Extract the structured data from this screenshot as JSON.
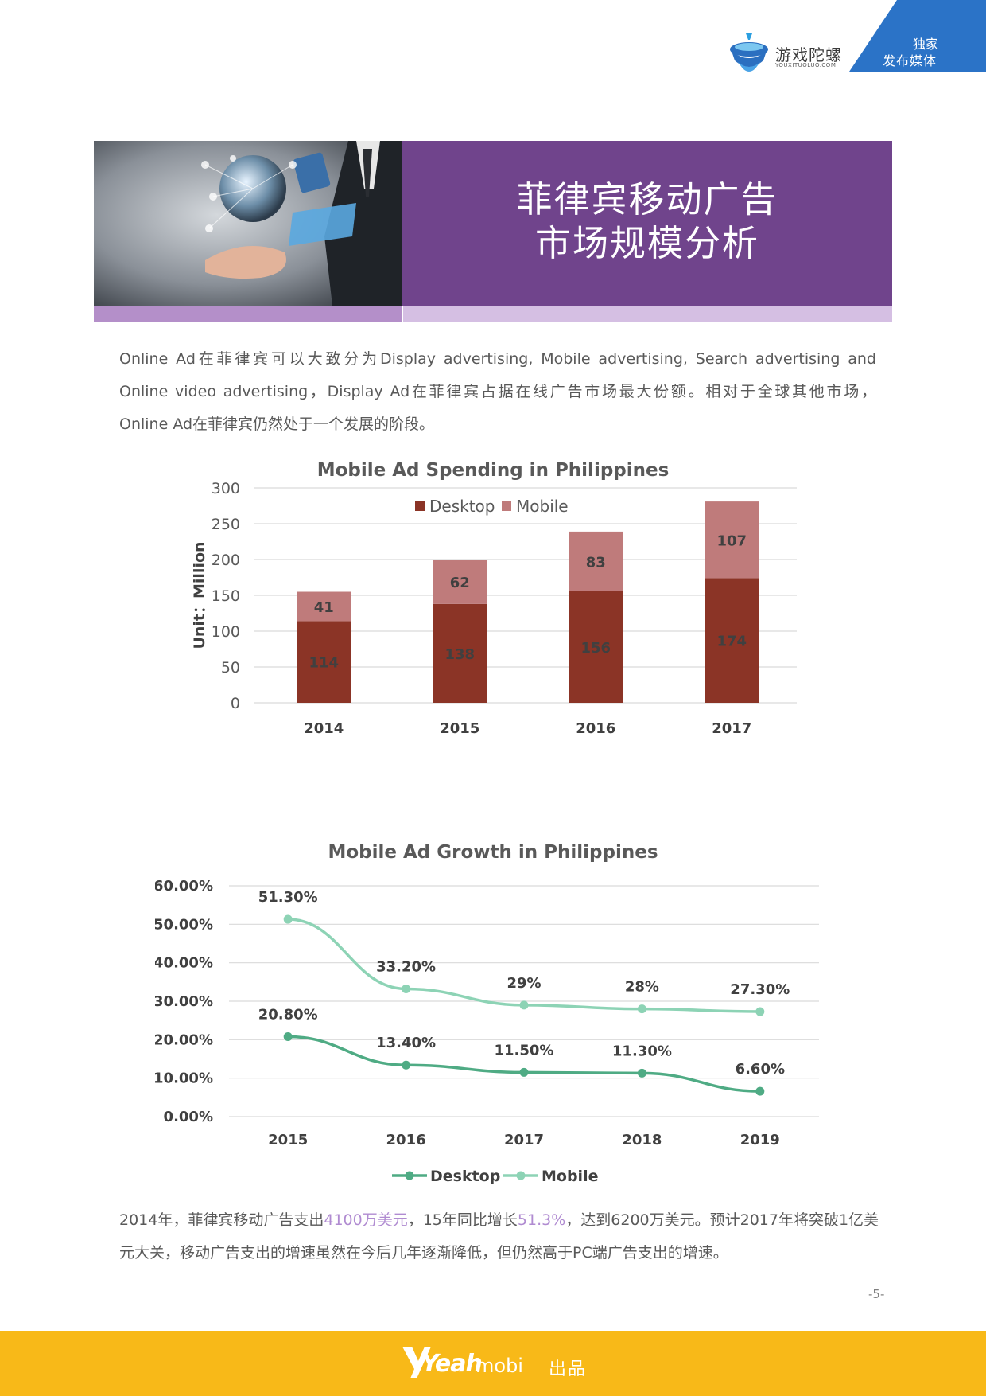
{
  "header": {
    "logo_name": "游戏陀螺",
    "logo_sub": "YOUXITUOLUO.COM",
    "corner_line1": "独家",
    "corner_line2": "发布媒体",
    "colors": {
      "corner": "#2b73c7",
      "logo_blue": "#2b6fc0"
    }
  },
  "banner": {
    "title_line1": "菲律宾移动广告",
    "title_line2": "市场规模分析",
    "image": "businessman-hand-tablet-network-globe",
    "colors": {
      "title_bg": "#70448c",
      "strip_left": "#b48fc9",
      "strip_right": "#d5bfe3"
    }
  },
  "intro": {
    "line1": "Online Ad在菲律宾可以大致分为Display advertising, Mobile advertising, Search advertising and",
    "line2": "Online video advertising，Display Ad在菲律宾占据在线广告市场最大份额。相对于全球其他市场，",
    "line3": "Online Ad在菲律宾仍然处于一个发展的阶段。"
  },
  "chart_data": [
    {
      "type": "bar",
      "stacked": true,
      "title": "Mobile Ad Spending in Philippines",
      "ylabel": "Unit：Million",
      "categories": [
        "2014",
        "2015",
        "2016",
        "2017"
      ],
      "series": [
        {
          "name": "Desktop",
          "values": [
            114,
            138,
            156,
            174
          ],
          "color": "#8b3426"
        },
        {
          "name": "Mobile",
          "values": [
            41,
            62,
            83,
            107
          ],
          "color": "#bf7b7b"
        }
      ],
      "ylim": [
        0,
        300
      ],
      "yticks": [
        "0",
        "50",
        "100",
        "150",
        "200",
        "250",
        "300"
      ],
      "legend": "top",
      "grid": true
    },
    {
      "type": "line",
      "title": "Mobile Ad Growth in Philippines",
      "categories": [
        "2015",
        "2016",
        "2017",
        "2018",
        "2019"
      ],
      "series": [
        {
          "name": "Desktop",
          "values": [
            20.8,
            13.4,
            11.5,
            11.3,
            6.6
          ],
          "labels": [
            "20.80%",
            "13.40%",
            "11.50%",
            "11.30%",
            "6.60%"
          ],
          "color": "#4fab84"
        },
        {
          "name": "Mobile",
          "values": [
            51.3,
            33.2,
            29,
            28,
            27.3
          ],
          "labels": [
            "51.30%",
            "33.20%",
            "29%",
            "28%",
            "27.30%"
          ],
          "color": "#8dd3b5"
        }
      ],
      "ylim": [
        0,
        60
      ],
      "yticks": [
        "0.00%",
        "10.00%",
        "20.00%",
        "30.00%",
        "40.00%",
        "50.00%",
        "60.00%"
      ],
      "legend": "bottom",
      "grid": true
    }
  ],
  "summary": {
    "p1": "2014年，菲律宾移动广告支出",
    "h1": "4100万美元",
    "p2": "，15年同比增长",
    "h2": "51.3%",
    "p3": "，达到6200万美元。预计2017年将突破1亿美元大关，移动广告支出的增速虽然在今后几年逐渐降低，但仍然高于PC端广告支出的增速。"
  },
  "page_number": "-5-",
  "footer": {
    "brand_yeah": "Yeah",
    "brand_mobi": "mobi",
    "produced": "出品",
    "color": "#f8b918"
  }
}
